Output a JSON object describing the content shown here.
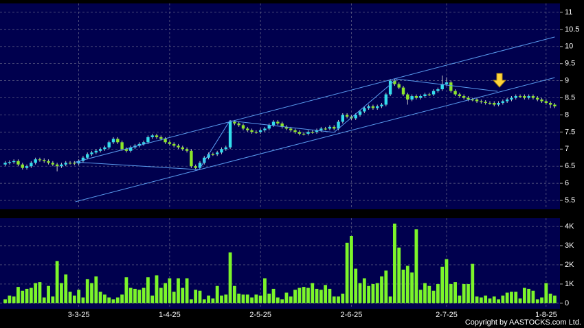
{
  "chart_data": [
    {
      "type": "candlestick",
      "up_color": "#33dded",
      "down_color": "#8ce62a",
      "wick_color": "#c8c8c8",
      "line_color": "#5a9cf0",
      "xlim": [
        -1.2,
        128.2
      ],
      "xticks": [
        {
          "value": 17,
          "label": "3-3-25"
        },
        {
          "value": 38,
          "label": "1-4-25"
        },
        {
          "value": 59,
          "label": "2-5-25"
        },
        {
          "value": 80,
          "label": "2-6-25"
        },
        {
          "value": 102,
          "label": "2-7-25"
        },
        {
          "value": 125,
          "label": "1-8-25"
        }
      ],
      "ylim": [
        5.24,
        11.26
      ],
      "yticks": [
        5.5,
        6,
        6.5,
        7,
        7.5,
        8,
        8.5,
        9,
        9.5,
        10,
        10.5,
        11
      ],
      "grid": true,
      "open": [
        6.55,
        6.6,
        6.62,
        6.65,
        6.55,
        6.45,
        6.5,
        6.6,
        6.7,
        6.68,
        6.65,
        6.6,
        6.55,
        6.5,
        6.55,
        6.6,
        6.6,
        6.58,
        6.65,
        6.75,
        6.85,
        6.9,
        6.95,
        7.0,
        7.05,
        7.2,
        7.3,
        7.2,
        7.0,
        6.95,
        7.05,
        7.1,
        7.15,
        7.2,
        7.35,
        7.4,
        7.35,
        7.3,
        7.2,
        7.15,
        7.1,
        7.05,
        7.0,
        6.95,
        6.5,
        6.45,
        6.6,
        6.75,
        6.85,
        6.85,
        6.9,
        7.0,
        7.05,
        7.8,
        7.75,
        7.7,
        7.6,
        7.55,
        7.5,
        7.5,
        7.55,
        7.6,
        7.7,
        7.8,
        7.75,
        7.65,
        7.6,
        7.55,
        7.5,
        7.45,
        7.45,
        7.5,
        7.5,
        7.55,
        7.6,
        7.6,
        7.65,
        7.6,
        7.8,
        8.0,
        7.95,
        7.9,
        8.0,
        8.1,
        8.2,
        8.25,
        8.2,
        8.25,
        8.3,
        8.6,
        9.0,
        8.9,
        8.8,
        8.6,
        8.45,
        8.55,
        8.5,
        8.55,
        8.6,
        8.6,
        8.7,
        8.75,
        8.9,
        8.95,
        8.7,
        8.6,
        8.55,
        8.5,
        8.45,
        8.45,
        8.4,
        8.38,
        8.35,
        8.35,
        8.3,
        8.35,
        8.4,
        8.45,
        8.5,
        8.55,
        8.55,
        8.5,
        8.55,
        8.5,
        8.45,
        8.4,
        8.35,
        8.3
      ],
      "high": [
        6.65,
        6.67,
        6.7,
        6.7,
        6.6,
        6.55,
        6.65,
        6.75,
        6.75,
        6.73,
        6.7,
        6.65,
        6.6,
        6.6,
        6.65,
        6.65,
        6.65,
        6.7,
        6.8,
        6.9,
        6.95,
        7.0,
        7.05,
        7.1,
        7.25,
        7.35,
        7.35,
        7.25,
        7.05,
        7.1,
        7.15,
        7.2,
        7.25,
        7.4,
        7.45,
        7.45,
        7.4,
        7.35,
        7.25,
        7.2,
        7.15,
        7.1,
        7.05,
        7.0,
        6.55,
        6.65,
        6.8,
        6.9,
        6.9,
        6.95,
        7.05,
        7.1,
        7.85,
        7.85,
        7.8,
        7.75,
        7.65,
        7.6,
        7.55,
        7.6,
        7.65,
        7.75,
        7.85,
        7.85,
        7.8,
        7.7,
        7.65,
        7.6,
        7.55,
        7.5,
        7.55,
        7.55,
        7.6,
        7.65,
        7.65,
        7.7,
        7.7,
        7.85,
        8.05,
        8.05,
        8.0,
        8.05,
        8.15,
        8.25,
        8.3,
        8.3,
        8.3,
        8.35,
        8.65,
        9.05,
        9.05,
        8.95,
        8.85,
        8.65,
        8.6,
        8.6,
        8.6,
        8.65,
        8.65,
        8.75,
        8.8,
        9.15,
        9.1,
        9.0,
        8.75,
        8.65,
        8.6,
        8.55,
        8.5,
        8.5,
        8.45,
        8.43,
        8.4,
        8.4,
        8.4,
        8.45,
        8.5,
        8.55,
        8.6,
        8.6,
        8.6,
        8.6,
        8.6,
        8.55,
        8.5,
        8.45,
        8.4,
        8.35
      ],
      "low": [
        6.5,
        6.55,
        6.57,
        6.5,
        6.4,
        6.4,
        6.45,
        6.55,
        6.63,
        6.6,
        6.55,
        6.5,
        6.35,
        6.45,
        6.5,
        6.55,
        6.53,
        6.53,
        6.6,
        6.7,
        6.8,
        6.85,
        6.9,
        6.95,
        7.0,
        7.15,
        7.15,
        6.95,
        6.9,
        6.9,
        7.0,
        7.05,
        7.1,
        7.15,
        7.3,
        7.3,
        7.25,
        7.15,
        7.1,
        7.05,
        7.0,
        6.95,
        6.9,
        6.45,
        6.4,
        6.4,
        6.55,
        6.7,
        6.8,
        6.8,
        6.85,
        6.95,
        7.0,
        7.7,
        7.65,
        7.55,
        7.5,
        7.45,
        7.45,
        7.45,
        7.5,
        7.55,
        7.65,
        7.7,
        7.6,
        7.55,
        7.5,
        7.45,
        7.4,
        7.4,
        7.4,
        7.45,
        7.45,
        7.5,
        7.55,
        7.55,
        7.55,
        7.55,
        7.75,
        7.9,
        7.85,
        7.85,
        7.95,
        8.05,
        8.15,
        8.15,
        8.15,
        8.2,
        8.25,
        8.55,
        8.85,
        8.75,
        8.55,
        8.3,
        8.4,
        8.45,
        8.45,
        8.5,
        8.55,
        8.55,
        8.65,
        8.7,
        8.85,
        8.65,
        8.55,
        8.5,
        8.45,
        8.4,
        8.4,
        8.35,
        8.33,
        8.3,
        8.3,
        8.25,
        8.25,
        8.3,
        8.35,
        8.4,
        8.45,
        8.5,
        8.45,
        8.45,
        8.45,
        8.4,
        8.35,
        8.3,
        8.2,
        8.2
      ],
      "close": [
        6.6,
        6.62,
        6.65,
        6.55,
        6.45,
        6.5,
        6.6,
        6.7,
        6.68,
        6.65,
        6.6,
        6.55,
        6.5,
        6.55,
        6.6,
        6.6,
        6.58,
        6.65,
        6.75,
        6.85,
        6.9,
        6.95,
        7.0,
        7.05,
        7.2,
        7.3,
        7.2,
        7.0,
        6.95,
        7.05,
        7.1,
        7.15,
        7.2,
        7.35,
        7.4,
        7.35,
        7.3,
        7.2,
        7.15,
        7.1,
        7.05,
        7.0,
        6.95,
        6.5,
        6.45,
        6.6,
        6.75,
        6.85,
        6.85,
        6.9,
        7.0,
        7.05,
        7.8,
        7.75,
        7.7,
        7.6,
        7.55,
        7.5,
        7.5,
        7.55,
        7.6,
        7.7,
        7.8,
        7.75,
        7.65,
        7.6,
        7.55,
        7.5,
        7.45,
        7.45,
        7.5,
        7.5,
        7.55,
        7.6,
        7.6,
        7.65,
        7.6,
        7.8,
        8.0,
        7.95,
        7.9,
        8.0,
        8.1,
        8.2,
        8.25,
        8.2,
        8.25,
        8.3,
        8.6,
        9.0,
        8.9,
        8.8,
        8.6,
        8.45,
        8.55,
        8.5,
        8.55,
        8.6,
        8.6,
        8.7,
        8.75,
        8.9,
        8.95,
        8.7,
        8.6,
        8.55,
        8.5,
        8.45,
        8.45,
        8.4,
        8.38,
        8.35,
        8.35,
        8.3,
        8.35,
        8.4,
        8.45,
        8.5,
        8.55,
        8.55,
        8.5,
        8.55,
        8.5,
        8.45,
        8.4,
        8.35,
        8.3,
        8.25
      ],
      "trend_lines": [
        {
          "x": [
            16.2,
            127
          ],
          "y": [
            6.62,
            10.28
          ]
        },
        {
          "x": [
            16.2,
            127
          ],
          "y": [
            5.46,
            9.09
          ]
        },
        {
          "x": [
            16.2,
            44.8,
            51.9,
            76,
            90.5,
            113.8
          ],
          "y": [
            6.62,
            6.4,
            7.83,
            7.49,
            9.05,
            8.69
          ]
        }
      ]
    },
    {
      "type": "bar",
      "color": "#7cf52a",
      "ylim": [
        -290,
        4430
      ],
      "yticks": [
        0,
        {
          "value": 1000,
          "label": "1K"
        },
        {
          "value": 2000,
          "label": "2K"
        },
        {
          "value": 3000,
          "label": "3K"
        },
        {
          "value": 4000,
          "label": "4K"
        }
      ],
      "values": [
        200,
        400,
        350,
        850,
        650,
        750,
        800,
        1050,
        1100,
        300,
        900,
        350,
        2200,
        1050,
        1500,
        600,
        400,
        700,
        300,
        1250,
        1050,
        1400,
        600,
        450,
        300,
        200,
        300,
        450,
        1350,
        800,
        750,
        700,
        800,
        1350,
        400,
        1450,
        800,
        1050,
        1300,
        600,
        1300,
        800,
        1300,
        200,
        700,
        650,
        200,
        400,
        250,
        900,
        400,
        450,
        2650,
        900,
        500,
        450,
        450,
        300,
        450,
        400,
        1300,
        500,
        750,
        300,
        200,
        550,
        350,
        700,
        800,
        850,
        800,
        1050,
        750,
        700,
        950,
        750,
        350,
        350,
        500,
        3150,
        3500,
        1800,
        1050,
        1300,
        900,
        1000,
        1050,
        1400,
        1700,
        350,
        4150,
        2900,
        1750,
        1950,
        1600,
        3850,
        700,
        1050,
        900,
        650,
        1000,
        1900,
        2300,
        1000,
        1100,
        400,
        1000,
        1000,
        2050,
        350,
        300,
        400,
        250,
        350,
        200,
        400,
        550,
        600,
        600,
        250,
        800,
        750,
        650,
        200,
        300,
        1050,
        500,
        400
      ]
    }
  ],
  "footer": "Copyright by AASTOCKS.com Ltd."
}
